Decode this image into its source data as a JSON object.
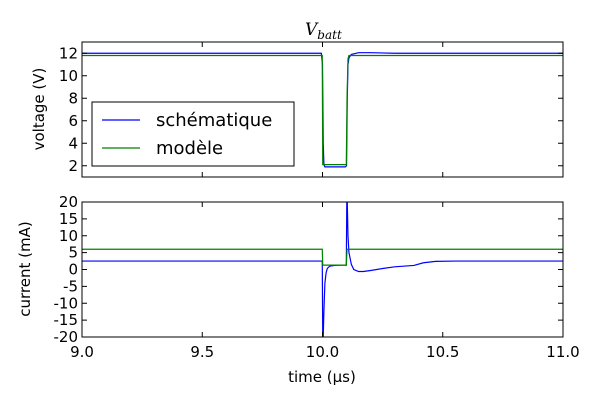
{
  "colors": {
    "series_blue": "#0000ff",
    "series_green": "#008000",
    "frame": "#000000"
  },
  "chart_data": [
    {
      "type": "line",
      "title": "Vbatt",
      "title_main": "V",
      "title_sub": "batt",
      "xlabel": "",
      "ylabel": "voltage (V)",
      "xlim": [
        9.0,
        11.0
      ],
      "ylim": [
        1,
        13
      ],
      "yticks": [
        2,
        4,
        6,
        8,
        10,
        12
      ],
      "show_x_tick_labels": false,
      "legend_position": "lower-left",
      "series": [
        {
          "name": "schématique",
          "color": "#0000ff",
          "x": [
            9.0,
            9.995,
            10.0,
            10.003,
            10.006,
            10.01,
            10.095,
            10.1,
            10.103,
            10.106,
            10.11,
            10.12,
            10.15,
            10.2,
            10.3,
            10.5,
            11.0
          ],
          "y": [
            12.0,
            12.0,
            11.0,
            4.0,
            2.1,
            1.9,
            1.9,
            2.0,
            8.0,
            11.0,
            11.6,
            11.9,
            12.05,
            12.05,
            12.0,
            12.0,
            12.0
          ]
        },
        {
          "name": "modèle",
          "color": "#008000",
          "x": [
            9.0,
            9.999,
            10.001,
            10.099,
            10.102,
            10.106,
            10.11,
            11.0
          ],
          "y": [
            11.8,
            11.8,
            2.1,
            2.1,
            8.0,
            11.5,
            11.8,
            11.8
          ]
        }
      ]
    },
    {
      "type": "line",
      "xlabel": "time (µs)",
      "ylabel": "current (mA)",
      "xlim": [
        9.0,
        11.0
      ],
      "ylim": [
        -20,
        20
      ],
      "xticks": [
        9.0,
        9.5,
        10.0,
        10.5,
        11.0
      ],
      "xtick_labels": [
        "9.0",
        "9.5",
        "10.0",
        "10.5",
        "11.0"
      ],
      "yticks": [
        -20,
        -15,
        -10,
        -5,
        0,
        5,
        10,
        15,
        20
      ],
      "series": [
        {
          "name": "schématique",
          "color": "#0000ff",
          "x": [
            9.0,
            9.999,
            10.001,
            10.003,
            10.006,
            10.01,
            10.015,
            10.02,
            10.03,
            10.05,
            10.07,
            10.09,
            10.099,
            10.101,
            10.103,
            10.106,
            10.11,
            10.12,
            10.13,
            10.15,
            10.17,
            10.2,
            10.25,
            10.3,
            10.38,
            10.42,
            10.47,
            10.55,
            11.0
          ],
          "y": [
            2.5,
            2.5,
            -20,
            -20,
            -12,
            -4,
            -1.0,
            0.3,
            1.0,
            1.2,
            1.3,
            1.3,
            1.3,
            20,
            20,
            10,
            5,
            1.5,
            0.0,
            -0.6,
            -0.6,
            -0.3,
            0.3,
            0.8,
            1.2,
            2.0,
            2.4,
            2.5,
            2.5
          ]
        },
        {
          "name": "modèle",
          "color": "#008000",
          "x": [
            9.0,
            9.999,
            10.001,
            10.099,
            10.102,
            11.0
          ],
          "y": [
            6.0,
            6.0,
            1.3,
            1.3,
            6.0,
            6.0
          ]
        }
      ]
    }
  ]
}
